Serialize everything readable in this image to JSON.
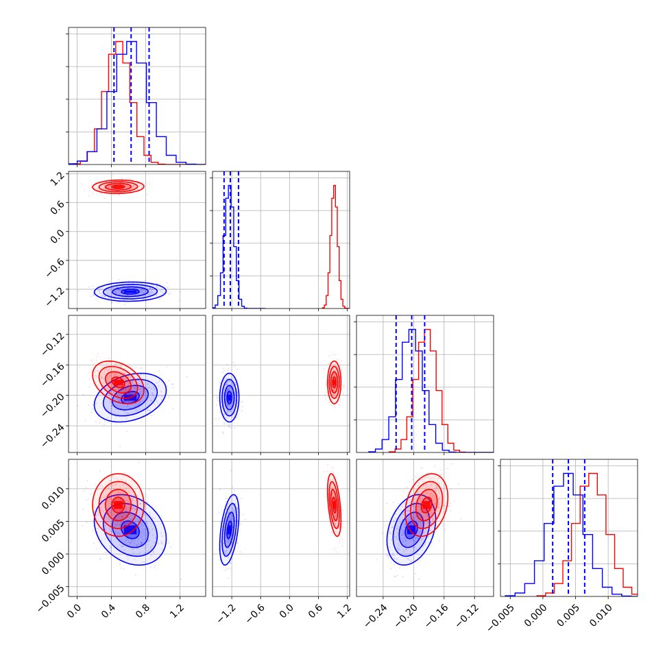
{
  "colors": {
    "red": "#ff0000",
    "blue": "#0000ff",
    "grid": "#b0b0b0",
    "frame": "#000000"
  },
  "chart_data": {
    "type": "corner",
    "grid": true,
    "series": [
      {
        "color": "#ff0000",
        "mean": [
          0.48,
          0.93,
          -0.183,
          0.0075
        ],
        "std": [
          0.15,
          0.07,
          0.014,
          0.0024
        ]
      },
      {
        "color": "#0000ff",
        "mean": [
          0.62,
          -1.25,
          -0.203,
          0.0037
        ],
        "std": [
          0.21,
          0.1,
          0.016,
          0.0027
        ]
      }
    ],
    "quantiles_dashed": {
      "color": "#0000ff",
      "param_1": [
        0.43,
        0.63,
        0.84
      ],
      "param_2": [
        -1.36,
        -1.23,
        -1.06
      ],
      "param_3": [
        -0.223,
        -0.2025,
        -0.1855
      ],
      "param_4": [
        0.0015,
        0.0039,
        0.0064
      ]
    },
    "axes": [
      {
        "range": [
          -0.1,
          1.5
        ],
        "ticks": [
          "0.0",
          "0.4",
          "0.8",
          "1.2"
        ],
        "tick_values": [
          0.0,
          0.4,
          0.8,
          1.2
        ]
      },
      {
        "range": [
          -1.6,
          1.25
        ],
        "ticks": [
          "−1.2",
          "−0.6",
          "0.0",
          "0.6",
          "1.2"
        ],
        "tick_values": [
          -1.2,
          -0.6,
          0.0,
          0.6,
          1.2
        ]
      },
      {
        "range": [
          -0.275,
          -0.095
        ],
        "ticks": [
          "−0.24",
          "−0.20",
          "−0.16",
          "−0.12"
        ],
        "tick_values": [
          -0.24,
          -0.2,
          -0.16,
          -0.12
        ]
      },
      {
        "range": [
          -0.0065,
          0.0145
        ],
        "ticks": [
          "−0.005",
          "0.000",
          "0.005",
          "0.010"
        ],
        "tick_values": [
          -0.005,
          0.0,
          0.005,
          0.01
        ]
      }
    ]
  }
}
